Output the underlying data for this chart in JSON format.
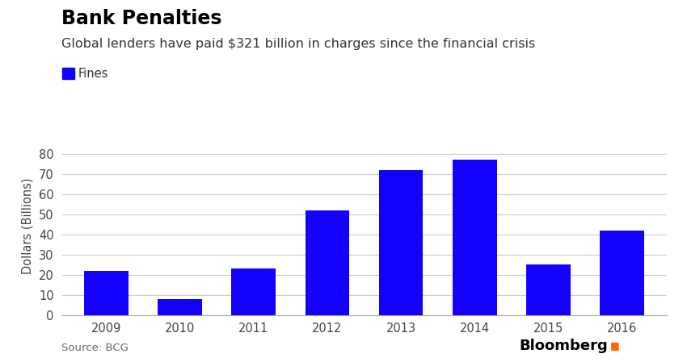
{
  "title": "Bank Penalties",
  "subtitle": "Global lenders have paid $321 billion in charges since the financial crisis",
  "legend_label": "Fines",
  "source_text": "Source: BCG",
  "bloomberg_text": "Bloomberg",
  "years": [
    "2009",
    "2010",
    "2011",
    "2012",
    "2013",
    "2014",
    "2015",
    "2016"
  ],
  "values": [
    22,
    8,
    23,
    52,
    72,
    77,
    25,
    42
  ],
  "bar_color": "#1400FF",
  "background_color": "#FFFFFF",
  "ylabel": "Dollars (Billions)",
  "ylim": [
    0,
    88
  ],
  "yticks": [
    0,
    10,
    20,
    30,
    40,
    50,
    60,
    70,
    80
  ],
  "grid_color": "#CCCCCC",
  "title_fontsize": 17,
  "subtitle_fontsize": 11.5,
  "tick_fontsize": 10.5,
  "ylabel_fontsize": 10.5,
  "legend_fontsize": 10.5,
  "source_fontsize": 9.5,
  "bloomberg_fontsize": 13
}
